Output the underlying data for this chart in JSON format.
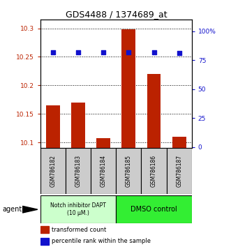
{
  "title": "GDS4488 / 1374689_at",
  "samples": [
    "GSM786182",
    "GSM786183",
    "GSM786184",
    "GSM786185",
    "GSM786186",
    "GSM786187"
  ],
  "bar_values": [
    10.165,
    10.17,
    10.108,
    10.298,
    10.22,
    10.11
  ],
  "percentile_values": [
    82,
    82,
    82,
    82,
    82,
    81
  ],
  "ylim_left": [
    10.09,
    10.315
  ],
  "ylim_right": [
    -1.1,
    110
  ],
  "yticks_left": [
    10.1,
    10.15,
    10.2,
    10.25,
    10.3
  ],
  "ytick_labels_left": [
    "10.1",
    "10.15",
    "10.2",
    "10.25",
    "10.3"
  ],
  "yticks_right": [
    0,
    25,
    50,
    75,
    100
  ],
  "ytick_labels_right": [
    "0",
    "25",
    "50",
    "75",
    "100%"
  ],
  "bar_color": "#bb2200",
  "dot_color": "#1111cc",
  "group1_label": "Notch inhibitor DAPT\n(10 μM.)",
  "group2_label": "DMSO control",
  "group1_bg": "#ccffcc",
  "group2_bg": "#33ee33",
  "agent_label": "agent",
  "legend_bar_label": "transformed count",
  "legend_dot_label": "percentile rank within the sample",
  "bar_bottom": 10.09,
  "bar_width": 0.55,
  "dot_size": 18,
  "sample_box_bg": "#cccccc"
}
